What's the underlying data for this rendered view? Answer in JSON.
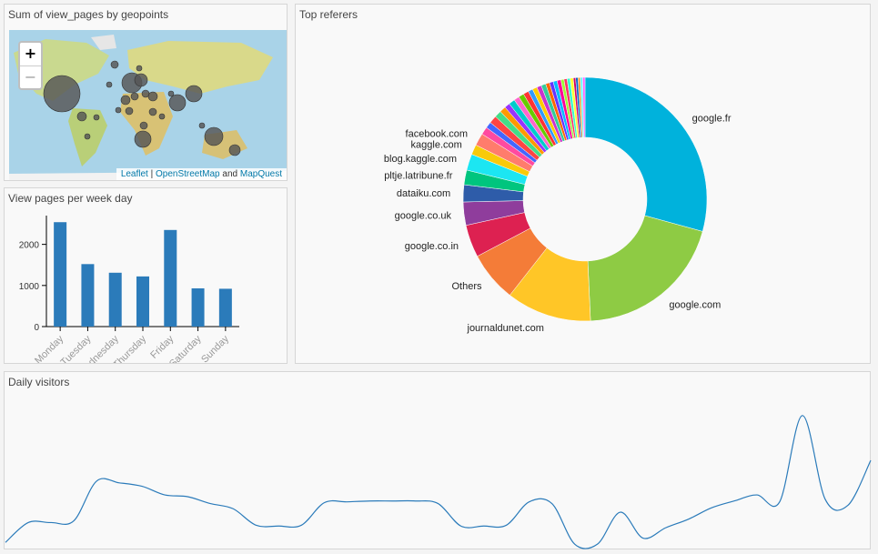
{
  "map_panel": {
    "title": "Sum of view_pages by geopoints",
    "zoom_in": "+",
    "zoom_out": "−",
    "attribution": {
      "leaflet": "Leaflet",
      "sep": " | ",
      "osm": "OpenStreetMap",
      "and": " and ",
      "mapquest": "MapQuest"
    }
  },
  "week_panel": {
    "title": "View pages per week day"
  },
  "referers_panel": {
    "title": "Top referers"
  },
  "daily_panel": {
    "title": "Daily visitors"
  },
  "chart_data": [
    {
      "type": "bar",
      "categories": [
        "Monday",
        "Tuesday",
        "Wednesday",
        "Thursday",
        "Friday",
        "Saturday",
        "Sunday"
      ],
      "values": [
        2540,
        1520,
        1310,
        1220,
        2350,
        930,
        920
      ],
      "ylim": [
        0,
        2700
      ],
      "yticks": [
        0,
        1000,
        2000
      ],
      "color": "#2b7bba"
    },
    {
      "type": "pie",
      "donut": true,
      "labels": [
        "google.fr",
        "google.com",
        "journaldunet.com",
        "Others",
        "google.co.in",
        "google.co.uk",
        "dataiku.com",
        "pltje.latribune.fr",
        "blog.kaggle.com",
        "kaggle.com",
        "facebook.com"
      ],
      "values": [
        28.5,
        19.5,
        11.0,
        6.5,
        4.2,
        3.0,
        2.2,
        1.9,
        2.1,
        1.3,
        1.6
      ],
      "colors": [
        "#00b2dc",
        "#8ecb44",
        "#ffc627",
        "#f47c38",
        "#dd2151",
        "#8f3d9c",
        "#2e5ca9",
        "#00c57e",
        "#1ce6f2",
        "#f9ca0a",
        "#ff7c6c"
      ],
      "small_slice_values": [
        1.0,
        0.8,
        1.0,
        0.9,
        0.8,
        0.7,
        0.8,
        0.7,
        0.7,
        0.7,
        0.6,
        0.6,
        0.6,
        0.6,
        0.5,
        0.5,
        0.5,
        0.5,
        0.4,
        0.4,
        0.4,
        0.4,
        0.3,
        0.3,
        0.3,
        0.3,
        0.3
      ],
      "small_slice_colors": [
        "#ff4aa0",
        "#4466ff",
        "#ff4444",
        "#44dd88",
        "#ff9900",
        "#9933ff",
        "#00cccc",
        "#ff66cc",
        "#66cc00",
        "#ff3333",
        "#3399ff",
        "#ffcc00",
        "#cc33cc",
        "#33cc99",
        "#ff6600",
        "#6633ff",
        "#00bbff",
        "#ff0099",
        "#99ff33",
        "#ff3366",
        "#33ffcc",
        "#ffff33",
        "#cc0066",
        "#0066cc",
        "#ff9933",
        "#66ffff",
        "#ff66ff"
      ]
    },
    {
      "type": "line",
      "color": "#2b7bba",
      "ylim": [
        0,
        175
      ],
      "values": [
        5,
        28,
        28,
        30,
        76,
        74,
        70,
        60,
        58,
        50,
        44,
        25,
        24,
        25,
        51,
        52,
        53,
        53,
        53,
        50,
        24,
        24,
        25,
        52,
        50,
        3,
        3,
        40,
        10,
        22,
        32,
        45,
        53,
        60,
        52,
        152,
        55,
        48,
        100
      ]
    }
  ]
}
